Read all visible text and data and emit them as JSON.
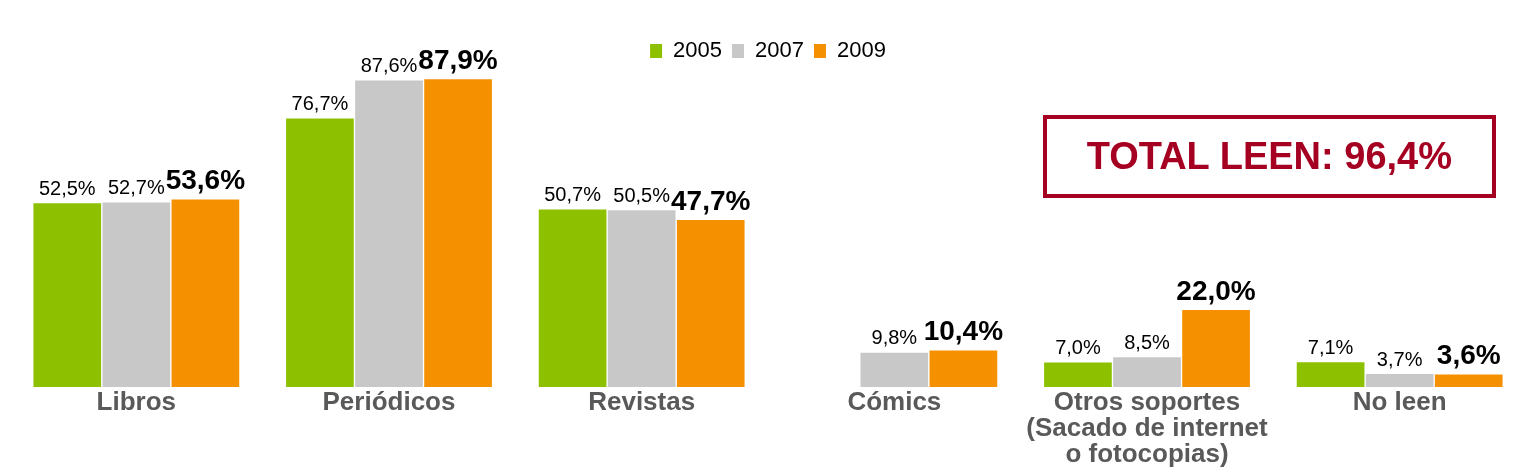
{
  "chart_data": {
    "type": "bar",
    "categories": [
      "Libros",
      "Periódicos",
      "Revistas",
      "Cómics",
      "Otros soportes\n(Sacado de internet\no fotocopias)",
      "No leen"
    ],
    "series": [
      {
        "name": "2005",
        "color": "#8dc100",
        "values": [
          52.5,
          76.7,
          50.7,
          null,
          7.0,
          7.1
        ],
        "value_labels": [
          "52,5%",
          "76,7%",
          "50,7%",
          null,
          "7,0%",
          "7,1%"
        ]
      },
      {
        "name": "2007",
        "color": "#c8c8c8",
        "values": [
          52.7,
          87.6,
          50.5,
          9.8,
          8.5,
          3.7
        ],
        "value_labels": [
          "52,7%",
          "87,6%",
          "50,5%",
          "9,8%",
          "8,5%",
          "3,7%"
        ]
      },
      {
        "name": "2009",
        "color": "#f59100",
        "values": [
          53.6,
          87.9,
          47.7,
          10.4,
          22.0,
          3.6
        ],
        "value_labels": [
          "53,6%",
          "87,9%",
          "47,7%",
          "10,4%",
          "22,0%",
          "3,6%"
        ]
      }
    ],
    "annotations": [
      "TOTAL LEEN: 96,4%"
    ],
    "legend": "top",
    "grid": false
  }
}
